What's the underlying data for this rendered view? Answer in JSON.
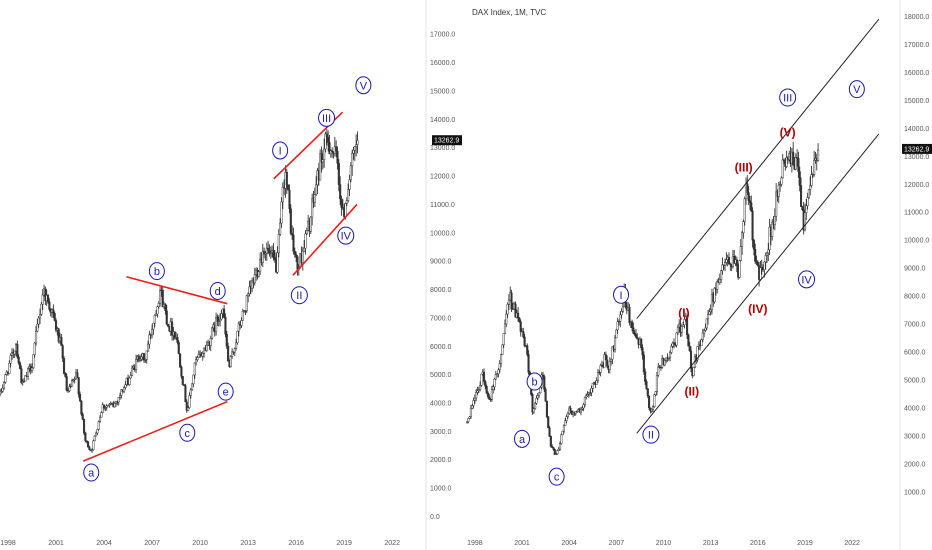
{
  "colors": {
    "candle": "#333333",
    "axis_text": "#555555",
    "trend_red": "#e8201c",
    "channel_black": "#222222",
    "wave_blue": "#1a1aa8",
    "wave_red": "#b00000",
    "price_label_bg": "#111111"
  },
  "chart_data": [
    {
      "type": "candlestick",
      "title": "",
      "xlabel": "",
      "ylabel": "",
      "price_axis_position": "right",
      "x_ticks": [
        "1998",
        "2001",
        "2004",
        "2007",
        "2010",
        "2013",
        "2016",
        "2019",
        "2022"
      ],
      "x_range": [
        1997.5,
        2023.3
      ],
      "y_ticks": [
        "0.0",
        "1000.0",
        "2000.0",
        "3000.0",
        "4000.0",
        "5000.0",
        "6000.0",
        "7000.0",
        "8000.0",
        "9000.0",
        "10000.0",
        "11000.0",
        "12000.0",
        "13000.0",
        "14000.0",
        "15000.0",
        "16000.0",
        "17000.0"
      ],
      "y_range": [
        -300,
        17500
      ],
      "current_price": "13262.9",
      "series": [
        {
          "values": [
            [
              1997.5,
              4300
            ],
            [
              1998.5,
              6100
            ],
            [
              1998.9,
              4600
            ],
            [
              1999.5,
              5400
            ],
            [
              2000.2,
              8000
            ],
            [
              2000.7,
              7300
            ],
            [
              2001.3,
              6000
            ],
            [
              2001.7,
              4300
            ],
            [
              2002.3,
              5000
            ],
            [
              2002.8,
              2700
            ],
            [
              2003.2,
              2300
            ],
            [
              2003.9,
              3900
            ],
            [
              2004.6,
              3900
            ],
            [
              2005.5,
              4800
            ],
            [
              2006.3,
              5800
            ],
            [
              2006.5,
              5400
            ],
            [
              2007.5,
              8000
            ],
            [
              2008.0,
              6800
            ],
            [
              2008.5,
              6400
            ],
            [
              2009.2,
              3700
            ],
            [
              2009.7,
              5400
            ],
            [
              2010.5,
              6100
            ],
            [
              2011.4,
              7400
            ],
            [
              2011.8,
              5200
            ],
            [
              2012.5,
              6800
            ],
            [
              2013.0,
              7700
            ],
            [
              2014.0,
              9500
            ],
            [
              2014.8,
              8800
            ],
            [
              2015.3,
              12300
            ],
            [
              2015.8,
              9500
            ],
            [
              2016.1,
              8700
            ],
            [
              2016.9,
              10500
            ],
            [
              2017.5,
              12500
            ],
            [
              2018.0,
              13300
            ],
            [
              2018.6,
              12400
            ],
            [
              2018.9,
              10500
            ],
            [
              2019.4,
              12200
            ],
            [
              2019.9,
              13262.9
            ]
          ]
        }
      ],
      "annotations": {
        "lines": [
          {
            "from": [
              2002.7,
              1950
            ],
            "to": [
              2011.7,
              4050
            ]
          },
          {
            "from": [
              2005.4,
              8450
            ],
            "to": [
              2011.7,
              7500
            ]
          },
          {
            "from": [
              2014.6,
              11900
            ],
            "to": [
              2018.9,
              14250
            ]
          },
          {
            "from": [
              2015.8,
              8500
            ],
            "to": [
              2019.8,
              11000
            ]
          }
        ],
        "waves": [
          {
            "label": "a",
            "x": 2003.2,
            "y": 1550
          },
          {
            "label": "b",
            "x": 2007.3,
            "y": 8650
          },
          {
            "label": "c",
            "x": 2009.2,
            "y": 2950
          },
          {
            "label": "d",
            "x": 2011.1,
            "y": 7950
          },
          {
            "label": "e",
            "x": 2011.6,
            "y": 4400
          },
          {
            "label": "I",
            "x": 2015.0,
            "y": 12900
          },
          {
            "label": "II",
            "x": 2016.2,
            "y": 7800
          },
          {
            "label": "III",
            "x": 2017.9,
            "y": 14050
          },
          {
            "label": "IV",
            "x": 2019.1,
            "y": 9900
          },
          {
            "label": "V",
            "x": 2020.2,
            "y": 15200
          }
        ]
      }
    },
    {
      "type": "candlestick",
      "title": "DAX Index, 1M, TVC",
      "xlabel": "",
      "ylabel": "",
      "price_axis_position": "right",
      "x_ticks": [
        "1998",
        "2001",
        "2004",
        "2007",
        "2010",
        "2013",
        "2016",
        "2019",
        "2022"
      ],
      "x_range": [
        1997.5,
        2023.9
      ],
      "y_ticks": [
        "1000.0",
        "2000.0",
        "3000.0",
        "4000.0",
        "5000.0",
        "6000.0",
        "7000.0",
        "8000.0",
        "9000.0",
        "10000.0",
        "11000.0",
        "12000.0",
        "13000.0",
        "14000.0",
        "15000.0",
        "16000.0",
        "17000.0",
        "18000.0"
      ],
      "y_range": [
        0,
        18300
      ],
      "current_price": "13262.9",
      "series": [
        {
          "values": [
            [
              1997.5,
              3500
            ],
            [
              1998.5,
              5200
            ],
            [
              1998.9,
              4200
            ],
            [
              1999.5,
              5400
            ],
            [
              2000.2,
              8000
            ],
            [
              2000.7,
              7300
            ],
            [
              2001.3,
              6000
            ],
            [
              2001.7,
              3800
            ],
            [
              2002.3,
              5200
            ],
            [
              2002.8,
              2700
            ],
            [
              2003.2,
              2300
            ],
            [
              2003.9,
              3900
            ],
            [
              2004.6,
              3900
            ],
            [
              2005.5,
              4800
            ],
            [
              2006.3,
              5800
            ],
            [
              2006.5,
              5400
            ],
            [
              2007.5,
              8000
            ],
            [
              2008.0,
              6800
            ],
            [
              2008.5,
              6400
            ],
            [
              2009.2,
              3700
            ],
            [
              2009.7,
              5400
            ],
            [
              2010.5,
              6100
            ],
            [
              2011.4,
              7400
            ],
            [
              2011.8,
              5200
            ],
            [
              2012.5,
              6800
            ],
            [
              2013.0,
              7700
            ],
            [
              2014.0,
              9500
            ],
            [
              2014.8,
              8800
            ],
            [
              2015.3,
              12300
            ],
            [
              2015.8,
              9500
            ],
            [
              2016.1,
              8700
            ],
            [
              2016.9,
              10500
            ],
            [
              2017.5,
              12500
            ],
            [
              2018.0,
              13300
            ],
            [
              2018.6,
              12400
            ],
            [
              2018.9,
              10500
            ],
            [
              2019.4,
              12200
            ],
            [
              2019.9,
              13262.9
            ]
          ]
        }
      ],
      "annotations": {
        "lines": [
          {
            "from": [
              2008.3,
              7200
            ],
            "to": [
              2023.7,
              17900
            ]
          },
          {
            "from": [
              2008.3,
              3100
            ],
            "to": [
              2023.7,
              13800
            ]
          }
        ],
        "waves": [
          {
            "label": "b",
            "x": 2001.8,
            "y": 4950,
            "color": "blue"
          },
          {
            "label": "a",
            "x": 2001.0,
            "y": 2900,
            "color": "blue"
          },
          {
            "label": "c",
            "x": 2003.2,
            "y": 1550,
            "color": "blue"
          },
          {
            "label": "I",
            "x": 2007.3,
            "y": 8050,
            "color": "blue"
          },
          {
            "label": "II",
            "x": 2009.2,
            "y": 3050,
            "color": "blue"
          },
          {
            "label": "(I)",
            "x": 2011.3,
            "y": 7400,
            "color": "red"
          },
          {
            "label": "(II)",
            "x": 2011.8,
            "y": 4600,
            "color": "red"
          },
          {
            "label": "(III)",
            "x": 2015.1,
            "y": 12600,
            "color": "red"
          },
          {
            "label": "(IV)",
            "x": 2016.0,
            "y": 7550,
            "color": "red"
          },
          {
            "label": "(V)",
            "x": 2017.9,
            "y": 13850,
            "color": "red"
          },
          {
            "label": "III",
            "x": 2017.9,
            "y": 15100,
            "color": "blue"
          },
          {
            "label": "IV",
            "x": 2019.1,
            "y": 8600,
            "color": "blue"
          },
          {
            "label": "V",
            "x": 2022.3,
            "y": 15400,
            "color": "blue"
          }
        ]
      }
    }
  ]
}
